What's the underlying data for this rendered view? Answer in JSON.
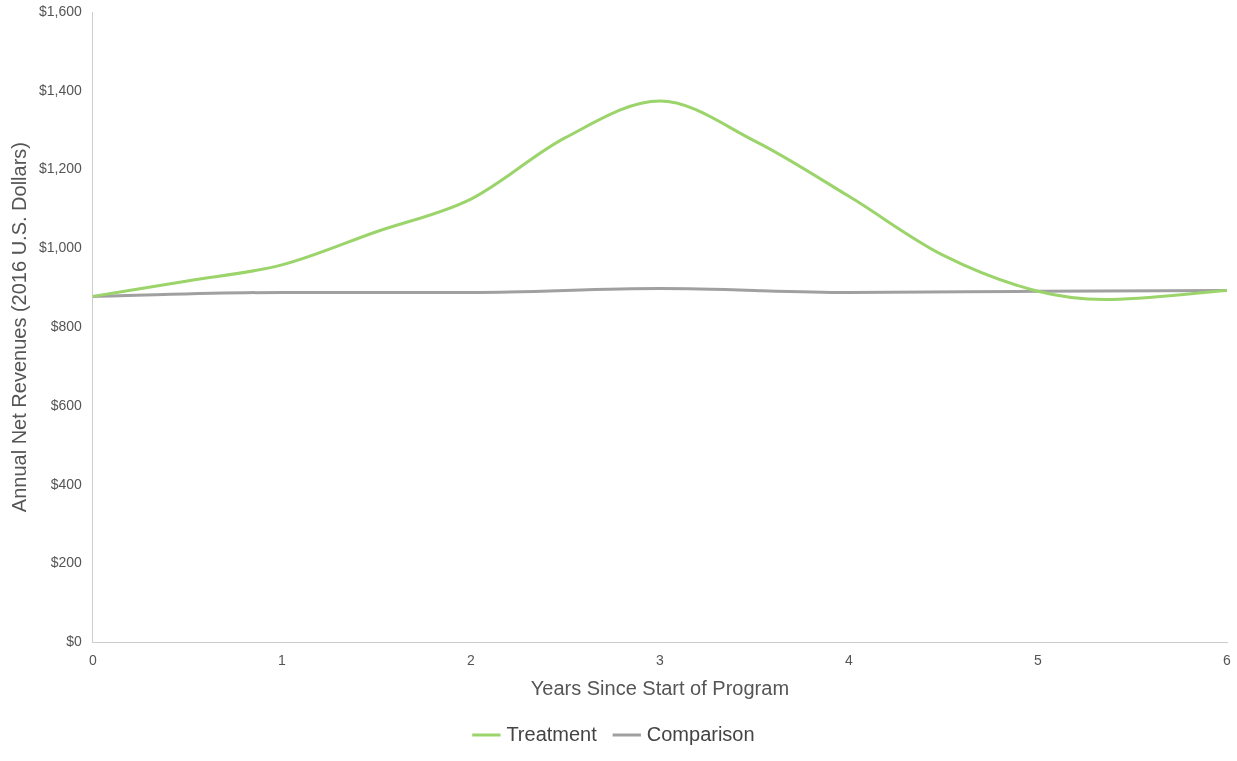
{
  "chart_data": {
    "type": "line",
    "xlabel": "Years Since Start of Program",
    "ylabel": "Annual Net Revenues (2016 U.S. Dollars)",
    "xlim": [
      0,
      6
    ],
    "xticks": [
      0,
      1,
      2,
      3,
      4,
      5,
      6
    ],
    "ylim": [
      0,
      1600
    ],
    "yticks": [
      {
        "value": 0,
        "label": "$0"
      },
      {
        "value": 200,
        "label": "$200"
      },
      {
        "value": 400,
        "label": "$400"
      },
      {
        "value": 600,
        "label": "$600"
      },
      {
        "value": 800,
        "label": "$800"
      },
      {
        "value": 1000,
        "label": "$1,000"
      },
      {
        "value": 1200,
        "label": "$1,200"
      },
      {
        "value": 1400,
        "label": "$1,400"
      },
      {
        "value": 1600,
        "label": "$1,600"
      }
    ],
    "grid": false,
    "legend": "bottom",
    "marker": "none",
    "series": [
      {
        "name": "Treatment",
        "color": "#9bd46a",
        "x": [
          0,
          0.5,
          1,
          1.5,
          2,
          2.5,
          3,
          3.5,
          4,
          4.5,
          5,
          5.35,
          6
        ],
        "values": [
          878,
          917,
          958,
          1042,
          1125,
          1281,
          1374,
          1273,
          1132,
          982,
          891,
          870,
          893
        ]
      },
      {
        "name": "Comparison",
        "color": "#a0a0a0",
        "x": [
          0,
          1,
          2,
          3,
          4,
          5,
          6
        ],
        "values": [
          878,
          888,
          888,
          898,
          888,
          891,
          893
        ]
      }
    ]
  }
}
